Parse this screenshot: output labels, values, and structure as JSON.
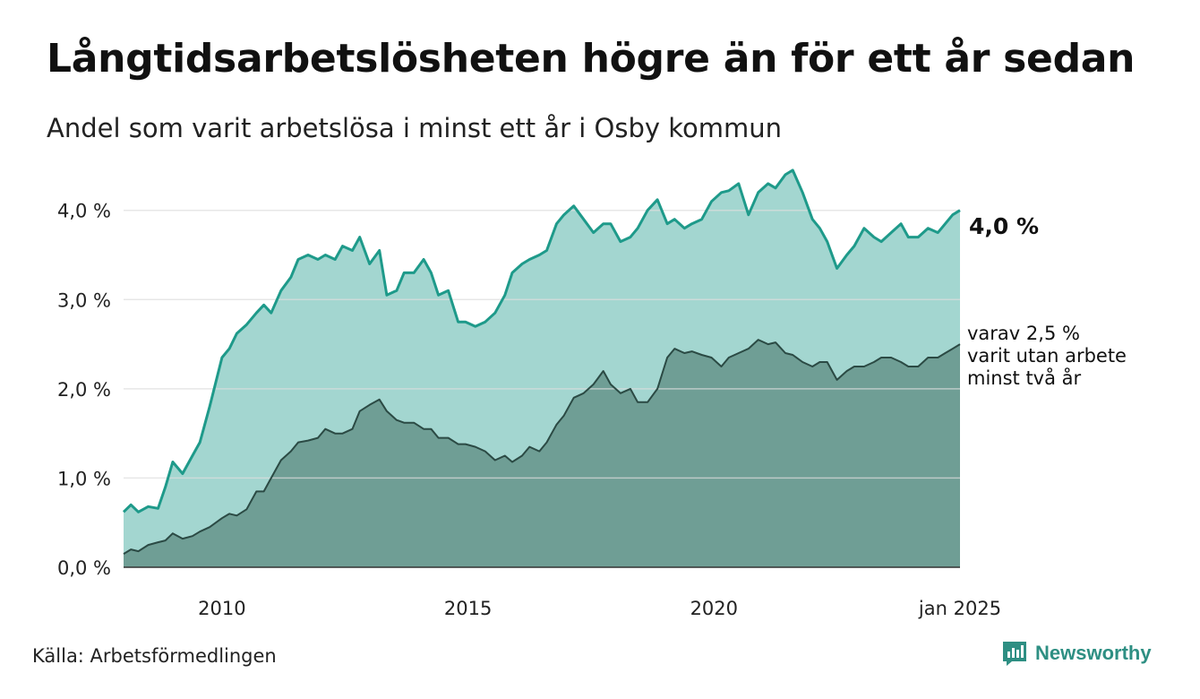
{
  "header": {
    "title": "Långtidsarbetslösheten högre än för ett år sedan",
    "subtitle": "Andel som varit arbetslösa i minst ett år i Osby kommun"
  },
  "footer": {
    "source": "Källa: Arbetsförmedlingen",
    "brand": "Newsworthy"
  },
  "annotations": {
    "end_main": "4,0 %",
    "end_sub_lines": [
      "varav 2,5 %",
      "varit utan arbete",
      "minst två år"
    ]
  },
  "colors": {
    "series1_line": "#1e9a8a",
    "series1_fill": "#a3d6d0",
    "series2_line": "#2b4a44",
    "series2_fill": "#6f9e95",
    "grid": "#dddddd",
    "brand": "#2e8f83"
  },
  "chart_data": {
    "type": "area",
    "title": "Långtidsarbetslösheten högre än för ett år sedan",
    "subtitle": "Andel som varit arbetslösa i minst ett år i Osby kommun",
    "xlabel": "",
    "ylabel": "",
    "x_range": [
      2008.0,
      2025.0
    ],
    "ylim": [
      0,
      4.6
    ],
    "grid": "horizontal",
    "y_ticks": [
      0,
      1,
      2,
      3,
      4
    ],
    "y_tick_labels": [
      "0,0 %",
      "1,0 %",
      "2,0 %",
      "3,0 %",
      "4,0 %"
    ],
    "x_ticks": [
      2010,
      2015,
      2020,
      2025
    ],
    "x_tick_labels": [
      "2010",
      "2015",
      "2020",
      "jan 2025"
    ],
    "series": [
      {
        "name": "",
        "x": [
          2008.0,
          2008.15,
          2008.3,
          2008.5,
          2008.7,
          2008.85,
          2009.0,
          2009.2,
          2009.4,
          2009.55,
          2009.75,
          2010.0,
          2010.15,
          2010.3,
          2010.5,
          2010.7,
          2010.85,
          2011.0,
          2011.2,
          2011.4,
          2011.55,
          2011.75,
          2011.95,
          2012.1,
          2012.3,
          2012.45,
          2012.65,
          2012.8,
          2013.0,
          2013.2,
          2013.35,
          2013.55,
          2013.7,
          2013.9,
          2014.1,
          2014.25,
          2014.4,
          2014.6,
          2014.8,
          2014.95,
          2015.15,
          2015.35,
          2015.55,
          2015.75,
          2015.9,
          2016.1,
          2016.25,
          2016.45,
          2016.6,
          2016.8,
          2016.95,
          2017.15,
          2017.35,
          2017.55,
          2017.75,
          2017.9,
          2018.1,
          2018.3,
          2018.45,
          2018.65,
          2018.85,
          2019.05,
          2019.2,
          2019.4,
          2019.55,
          2019.75,
          2019.95,
          2020.15,
          2020.3,
          2020.5,
          2020.7,
          2020.9,
          2021.1,
          2021.25,
          2021.45,
          2021.6,
          2021.8,
          2022.0,
          2022.15,
          2022.3,
          2022.5,
          2022.7,
          2022.85,
          2023.05,
          2023.25,
          2023.4,
          2023.6,
          2023.8,
          2023.95,
          2024.15,
          2024.35,
          2024.55,
          2024.7,
          2024.85,
          2025.0
        ],
        "y": [
          0.62,
          0.7,
          0.62,
          0.68,
          0.66,
          0.9,
          1.18,
          1.05,
          1.25,
          1.4,
          1.8,
          2.35,
          2.45,
          2.62,
          2.72,
          2.85,
          2.94,
          2.85,
          3.1,
          3.25,
          3.45,
          3.5,
          3.45,
          3.5,
          3.45,
          3.6,
          3.55,
          3.7,
          3.4,
          3.55,
          3.05,
          3.1,
          3.3,
          3.3,
          3.45,
          3.3,
          3.05,
          3.1,
          2.75,
          2.75,
          2.7,
          2.75,
          2.85,
          3.05,
          3.3,
          3.4,
          3.45,
          3.5,
          3.55,
          3.85,
          3.95,
          4.05,
          3.9,
          3.75,
          3.85,
          3.85,
          3.65,
          3.7,
          3.8,
          4.0,
          4.12,
          3.85,
          3.9,
          3.8,
          3.85,
          3.9,
          4.1,
          4.2,
          4.22,
          4.3,
          3.95,
          4.2,
          4.3,
          4.25,
          4.4,
          4.45,
          4.2,
          3.9,
          3.8,
          3.65,
          3.35,
          3.5,
          3.6,
          3.8,
          3.7,
          3.65,
          3.75,
          3.85,
          3.7,
          3.7,
          3.8,
          3.75,
          3.85,
          3.95,
          4.0
        ]
      },
      {
        "name": "",
        "x": [
          2008.0,
          2008.15,
          2008.3,
          2008.5,
          2008.7,
          2008.85,
          2009.0,
          2009.2,
          2009.4,
          2009.55,
          2009.75,
          2010.0,
          2010.15,
          2010.3,
          2010.5,
          2010.7,
          2010.85,
          2011.0,
          2011.2,
          2011.4,
          2011.55,
          2011.75,
          2011.95,
          2012.1,
          2012.3,
          2012.45,
          2012.65,
          2012.8,
          2013.0,
          2013.2,
          2013.35,
          2013.55,
          2013.7,
          2013.9,
          2014.1,
          2014.25,
          2014.4,
          2014.6,
          2014.8,
          2014.95,
          2015.15,
          2015.35,
          2015.55,
          2015.75,
          2015.9,
          2016.1,
          2016.25,
          2016.45,
          2016.6,
          2016.8,
          2016.95,
          2017.15,
          2017.35,
          2017.55,
          2017.75,
          2017.9,
          2018.1,
          2018.3,
          2018.45,
          2018.65,
          2018.85,
          2019.05,
          2019.2,
          2019.4,
          2019.55,
          2019.75,
          2019.95,
          2020.15,
          2020.3,
          2020.5,
          2020.7,
          2020.9,
          2021.1,
          2021.25,
          2021.45,
          2021.6,
          2021.8,
          2022.0,
          2022.15,
          2022.3,
          2022.5,
          2022.7,
          2022.85,
          2023.05,
          2023.25,
          2023.4,
          2023.6,
          2023.8,
          2023.95,
          2024.15,
          2024.35,
          2024.55,
          2024.7,
          2024.85,
          2025.0
        ],
        "y": [
          0.15,
          0.2,
          0.18,
          0.25,
          0.28,
          0.3,
          0.38,
          0.32,
          0.35,
          0.4,
          0.45,
          0.55,
          0.6,
          0.58,
          0.65,
          0.85,
          0.85,
          1.0,
          1.2,
          1.3,
          1.4,
          1.42,
          1.45,
          1.55,
          1.5,
          1.5,
          1.55,
          1.75,
          1.82,
          1.88,
          1.75,
          1.65,
          1.62,
          1.62,
          1.55,
          1.55,
          1.45,
          1.45,
          1.38,
          1.38,
          1.35,
          1.3,
          1.2,
          1.25,
          1.18,
          1.25,
          1.35,
          1.3,
          1.4,
          1.6,
          1.7,
          1.9,
          1.95,
          2.05,
          2.2,
          2.05,
          1.95,
          2.0,
          1.85,
          1.85,
          2.0,
          2.35,
          2.45,
          2.4,
          2.42,
          2.38,
          2.35,
          2.25,
          2.35,
          2.4,
          2.45,
          2.55,
          2.5,
          2.52,
          2.4,
          2.38,
          2.3,
          2.25,
          2.3,
          2.3,
          2.1,
          2.2,
          2.25,
          2.25,
          2.3,
          2.35,
          2.35,
          2.3,
          2.25,
          2.25,
          2.35,
          2.35,
          2.4,
          2.45,
          2.5
        ]
      }
    ]
  }
}
